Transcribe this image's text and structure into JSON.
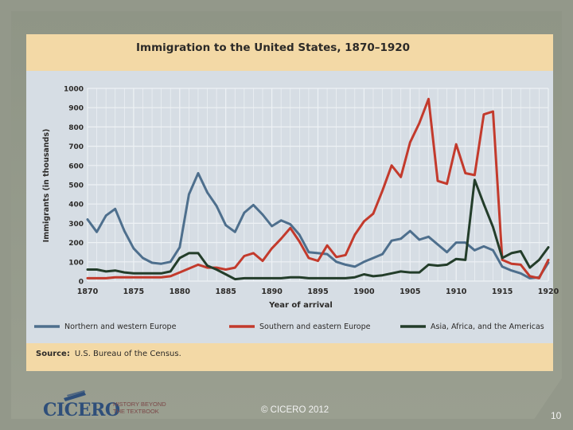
{
  "slide": {
    "copyright": "© CICERO 2012",
    "page_number": "10",
    "logo": {
      "name": "CICERO",
      "tagline_line1": "HISTORY BEYOND",
      "tagline_line2": "THE TEXTBOOK"
    }
  },
  "source": {
    "label": "Source:",
    "text": "U.S. Bureau of the Census."
  },
  "colors": {
    "northern_western": "#4e6f8d",
    "southern_eastern": "#c33a2c",
    "asia_africa_americas": "#233d2a"
  },
  "chart_data": {
    "type": "line",
    "title": "Immigration to the United States, 1870–1920",
    "xlabel": "Year of arrival",
    "ylabel": "Immigrants (in thousands)",
    "xlim": [
      1870,
      1920
    ],
    "ylim": [
      0,
      1000
    ],
    "x_ticks": [
      1870,
      1875,
      1880,
      1885,
      1890,
      1895,
      1900,
      1905,
      1910,
      1915,
      1920
    ],
    "y_ticks": [
      0,
      100,
      200,
      300,
      400,
      500,
      600,
      700,
      800,
      900,
      1000
    ],
    "grid": true,
    "legend_position": "bottom",
    "x": [
      1870,
      1871,
      1872,
      1873,
      1874,
      1875,
      1876,
      1877,
      1878,
      1879,
      1880,
      1881,
      1882,
      1883,
      1884,
      1885,
      1886,
      1887,
      1888,
      1889,
      1890,
      1891,
      1892,
      1893,
      1894,
      1895,
      1896,
      1897,
      1898,
      1899,
      1900,
      1901,
      1902,
      1903,
      1904,
      1905,
      1906,
      1907,
      1908,
      1909,
      1910,
      1911,
      1912,
      1913,
      1914,
      1915,
      1916,
      1917,
      1918,
      1919,
      1920
    ],
    "series": [
      {
        "name": "Northern and western Europe",
        "color_key": "northern_western",
        "values": [
          320,
          255,
          340,
          375,
          260,
          170,
          120,
          95,
          90,
          100,
          175,
          450,
          560,
          460,
          390,
          290,
          255,
          355,
          395,
          345,
          285,
          315,
          295,
          240,
          150,
          145,
          140,
          100,
          85,
          75,
          100,
          120,
          140,
          210,
          220,
          260,
          215,
          230,
          190,
          150,
          200,
          200,
          160,
          180,
          160,
          75,
          55,
          40,
          15,
          20,
          95
        ]
      },
      {
        "name": "Southern and eastern Europe",
        "color_key": "southern_eastern",
        "values": [
          15,
          15,
          15,
          20,
          20,
          20,
          20,
          20,
          20,
          25,
          45,
          65,
          85,
          70,
          70,
          60,
          70,
          130,
          145,
          105,
          170,
          220,
          275,
          205,
          120,
          105,
          185,
          125,
          135,
          240,
          310,
          350,
          470,
          600,
          540,
          720,
          820,
          945,
          520,
          505,
          710,
          560,
          550,
          865,
          880,
          110,
          90,
          85,
          25,
          15,
          110
        ]
      },
      {
        "name": "Asia, Africa, and the Americas",
        "color_key": "asia_africa_americas",
        "values": [
          60,
          60,
          50,
          55,
          45,
          40,
          40,
          40,
          40,
          50,
          120,
          145,
          145,
          80,
          60,
          35,
          10,
          15,
          15,
          15,
          15,
          15,
          20,
          20,
          15,
          15,
          15,
          15,
          15,
          20,
          35,
          25,
          30,
          40,
          50,
          45,
          45,
          85,
          80,
          85,
          115,
          110,
          525,
          400,
          280,
          120,
          145,
          155,
          70,
          110,
          175
        ]
      }
    ]
  }
}
